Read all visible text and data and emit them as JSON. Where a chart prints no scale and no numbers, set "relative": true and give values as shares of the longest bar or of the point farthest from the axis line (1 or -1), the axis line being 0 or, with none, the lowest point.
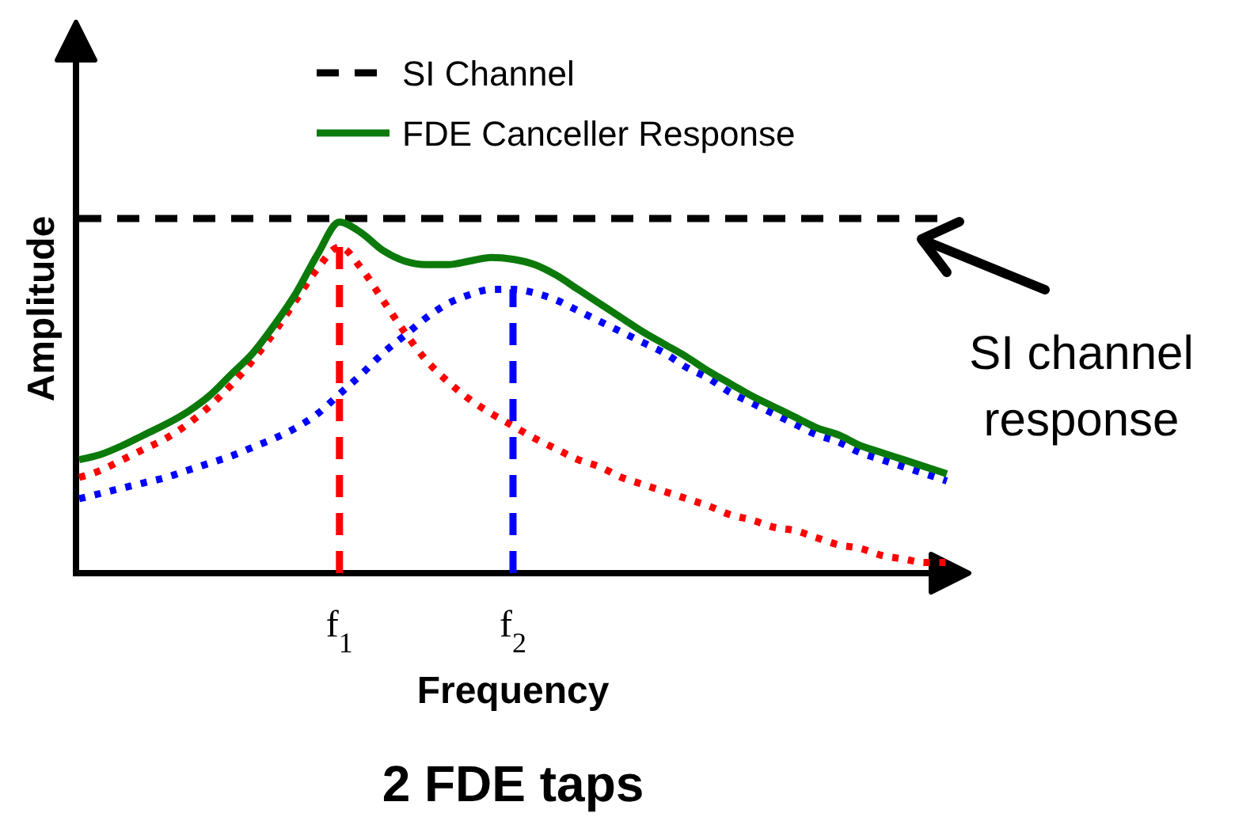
{
  "chart_data": {
    "type": "line",
    "relative": true,
    "title": "2 FDE taps",
    "xlabel": "Frequency",
    "ylabel": "Amplitude",
    "legend": "top",
    "tick_labels": "x",
    "annotations": [
      "SI channel response"
    ],
    "categories": [
      null,
      null,
      null,
      null,
      null,
      null,
      null,
      null,
      null,
      null,
      null,
      null,
      "f$_{1}$",
      null,
      null,
      null,
      null,
      null,
      null,
      null,
      "f$_{2}$",
      null,
      null,
      null,
      null,
      null,
      null,
      null,
      null,
      null,
      null,
      null,
      null,
      null,
      null,
      null,
      null,
      null,
      null,
      null,
      null
    ],
    "series": [
      {
        "name": "SI Channel",
        "color": "#000000",
        "line_style": "dashed",
        "values": [
          1,
          1,
          1,
          1,
          1,
          1,
          1,
          1,
          1,
          1,
          1,
          1,
          1,
          1,
          1,
          1,
          1,
          1,
          1,
          1,
          1,
          1,
          1,
          1,
          1,
          1,
          1,
          1,
          1,
          1,
          1,
          1,
          1,
          1,
          1,
          1,
          1,
          1,
          1,
          1,
          1
        ]
      },
      {
        "color": "#ff0000",
        "line_style": "dotted",
        "values": [
          0.27,
          0.29,
          0.32,
          0.35,
          0.38,
          0.42,
          0.47,
          0.53,
          0.6,
          0.68,
          0.77,
          0.86,
          0.92,
          0.86,
          0.77,
          0.68,
          0.6,
          0.54,
          0.49,
          0.45,
          0.415,
          0.38,
          0.35,
          0.32,
          0.3,
          0.27,
          0.25,
          0.23,
          0.21,
          0.19,
          0.165,
          0.15,
          0.13,
          0.12,
          0.1,
          0.08,
          0.07,
          0.05,
          0.04,
          0.03,
          0.03
        ]
      },
      {
        "color": "#0000ff",
        "line_style": "dotted",
        "values": [
          0.21,
          0.225,
          0.24,
          0.255,
          0.27,
          0.29,
          0.31,
          0.33,
          0.355,
          0.38,
          0.41,
          0.45,
          0.505,
          0.56,
          0.62,
          0.67,
          0.72,
          0.76,
          0.785,
          0.8,
          0.8,
          0.79,
          0.77,
          0.74,
          0.71,
          0.68,
          0.65,
          0.62,
          0.58,
          0.55,
          0.51,
          0.48,
          0.45,
          0.42,
          0.39,
          0.37,
          0.34,
          0.32,
          0.3,
          0.28,
          0.26
        ]
      },
      {
        "name": "FDE Canceller Response",
        "color": "#0b7a0b",
        "line_style": "solid",
        "values": [
          0.32,
          0.335,
          0.36,
          0.39,
          0.42,
          0.455,
          0.5,
          0.56,
          0.62,
          0.7,
          0.79,
          0.9,
          0.99,
          0.96,
          0.91,
          0.88,
          0.87,
          0.87,
          0.88,
          0.89,
          0.885,
          0.87,
          0.84,
          0.8,
          0.76,
          0.72,
          0.68,
          0.645,
          0.61,
          0.57,
          0.535,
          0.5,
          0.47,
          0.44,
          0.41,
          0.39,
          0.36,
          0.34,
          0.32,
          0.3,
          0.28
        ]
      },
      {
        "color": "#ff0000",
        "line_style": "dashed",
        "x": [
          "f$_{1}$",
          "f$_{1}$"
        ],
        "values": [
          0,
          0.92
        ]
      },
      {
        "color": "#0000ff",
        "line_style": "dashed",
        "x": [
          "f$_{2}$",
          "f$_{2}$"
        ],
        "values": [
          0,
          0.8
        ]
      }
    ]
  }
}
